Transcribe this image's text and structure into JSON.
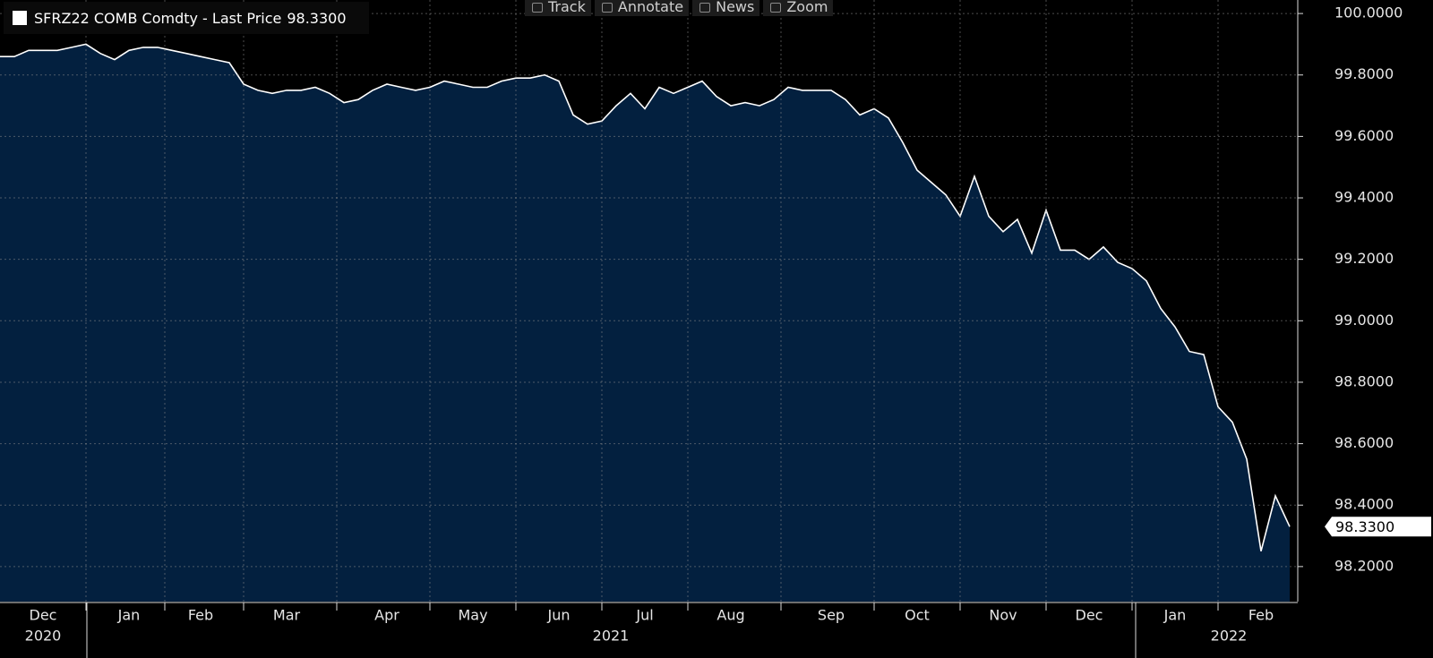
{
  "toolbar": [
    "Track",
    "Annotate",
    "News",
    "Zoom"
  ],
  "chart_data": {
    "type": "area",
    "categories": [
      null,
      null,
      null,
      "Dec",
      null,
      null,
      null,
      null,
      null,
      "Jan",
      null,
      null,
      null,
      null,
      "Feb",
      null,
      null,
      null,
      null,
      null,
      "Mar",
      null,
      null,
      null,
      null,
      null,
      null,
      "Apr",
      null,
      null,
      null,
      null,
      null,
      "May",
      null,
      null,
      null,
      null,
      null,
      "Jun",
      null,
      null,
      null,
      null,
      null,
      "Jul",
      null,
      null,
      null,
      null,
      null,
      "Aug",
      null,
      null,
      null,
      null,
      null,
      null,
      "Sep",
      null,
      null,
      null,
      null,
      null,
      "Oct",
      null,
      null,
      null,
      null,
      null,
      "Nov",
      null,
      null,
      null,
      null,
      null,
      "Dec",
      null,
      null,
      null,
      null,
      null,
      "Jan",
      null,
      null,
      null,
      null,
      null,
      "Feb",
      null,
      null
    ],
    "x_group_labels": [
      "2020",
      "2021",
      "2022"
    ],
    "series": [
      {
        "name": "SFRZ22 COMB Comdty - Last Price",
        "color": "#ffffff",
        "fill": "#03203f",
        "values": [
          99.86,
          99.86,
          99.88,
          99.88,
          99.88,
          99.89,
          99.9,
          99.87,
          99.85,
          99.88,
          99.89,
          99.89,
          99.88,
          99.87,
          99.86,
          99.85,
          99.84,
          99.77,
          99.75,
          99.74,
          99.75,
          99.75,
          99.76,
          99.74,
          99.71,
          99.72,
          99.75,
          99.77,
          99.76,
          99.75,
          99.76,
          99.78,
          99.77,
          99.76,
          99.76,
          99.78,
          99.79,
          99.79,
          99.8,
          99.78,
          99.67,
          99.64,
          99.65,
          99.7,
          99.74,
          99.69,
          99.76,
          99.74,
          99.76,
          99.78,
          99.73,
          99.7,
          99.71,
          99.7,
          99.72,
          99.76,
          99.75,
          99.75,
          99.75,
          99.72,
          99.67,
          99.69,
          99.66,
          99.58,
          99.49,
          99.45,
          99.41,
          99.34,
          99.47,
          99.34,
          99.29,
          99.33,
          99.22,
          99.36,
          99.23,
          99.23,
          99.2,
          99.24,
          99.19,
          99.17,
          99.13,
          99.04,
          98.98,
          98.9,
          98.89,
          98.72,
          98.67,
          98.55,
          98.25,
          98.43,
          98.33
        ],
        "value_labels": [
          null,
          null,
          null,
          null,
          null,
          null,
          null,
          null,
          null,
          null,
          null,
          null,
          null,
          null,
          null,
          null,
          null,
          null,
          null,
          null,
          null,
          null,
          null,
          null,
          null,
          null,
          null,
          null,
          null,
          null,
          null,
          null,
          null,
          null,
          null,
          null,
          null,
          null,
          null,
          null,
          null,
          null,
          null,
          null,
          null,
          null,
          null,
          null,
          null,
          null,
          null,
          null,
          null,
          null,
          null,
          null,
          null,
          null,
          null,
          null,
          null,
          null,
          null,
          null,
          null,
          null,
          null,
          null,
          null,
          null,
          null,
          null,
          null,
          null,
          null,
          null,
          null,
          null,
          null,
          null,
          null,
          null,
          null,
          null,
          null,
          null,
          null,
          null,
          null,
          null,
          "98.3300"
        ]
      }
    ],
    "ylim": [
      98.086,
      100.044
    ],
    "yticks": [
      {
        "value": 98.2,
        "label": "98.2000"
      },
      {
        "value": 98.4,
        "label": "98.4000"
      },
      {
        "value": 98.6,
        "label": "98.6000"
      },
      {
        "value": 98.8,
        "label": "98.8000"
      },
      {
        "value": 99.0,
        "label": "99.0000"
      },
      {
        "value": 99.2,
        "label": "99.2000"
      },
      {
        "value": 99.4,
        "label": "99.4000"
      },
      {
        "value": 99.6,
        "label": "99.6000"
      },
      {
        "value": 99.8,
        "label": "99.8000"
      },
      {
        "value": 100.0,
        "label": "100.0000"
      }
    ],
    "grid": true,
    "background": "#000000"
  }
}
